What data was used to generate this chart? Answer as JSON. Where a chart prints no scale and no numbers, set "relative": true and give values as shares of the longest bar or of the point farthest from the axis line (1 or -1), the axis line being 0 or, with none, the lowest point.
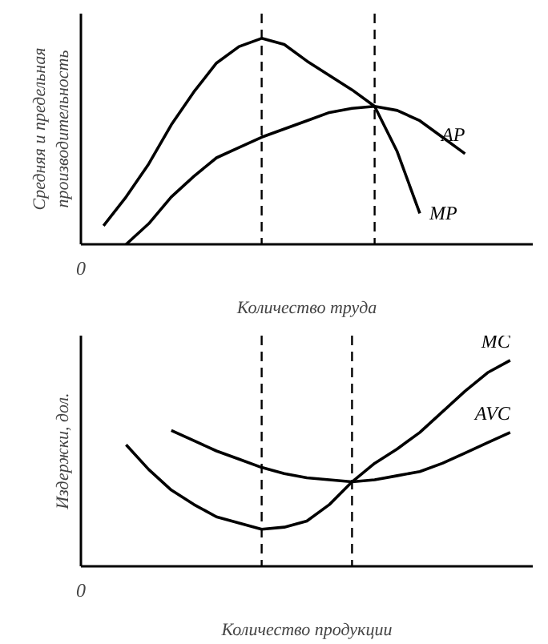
{
  "chart_data": [
    {
      "type": "line",
      "relative": true,
      "annotations": [
        "0"
      ],
      "xlabel": "Количество труда",
      "ylabel": "Средняя и предельная\nпроизводительность",
      "categories": [
        null,
        null,
        null,
        null,
        null,
        null,
        null,
        null,
        null,
        null,
        null,
        null,
        null,
        null,
        null,
        null,
        null,
        null,
        null,
        null,
        null
      ],
      "series": [
        {
          "name": "MP",
          "color": "#000000",
          "values": [
            null,
            0.09,
            0.23,
            0.39,
            0.58,
            0.74,
            0.88,
            0.96,
            1.0,
            0.97,
            0.89,
            0.82,
            0.75,
            0.67,
            0.45,
            0.15,
            null,
            null,
            null,
            null,
            null
          ]
        },
        {
          "name": "AP",
          "color": "#000000",
          "values": [
            null,
            null,
            0.0,
            0.1,
            0.23,
            0.33,
            0.42,
            0.47,
            0.52,
            0.56,
            0.6,
            0.64,
            0.66,
            0.67,
            0.65,
            0.6,
            0.52,
            0.44,
            null,
            null,
            null
          ]
        }
      ]
    },
    {
      "type": "line",
      "relative": true,
      "annotations": [
        "0"
      ],
      "xlabel": "Количество продукции",
      "ylabel": "Издержки, дол.",
      "categories": [
        null,
        null,
        null,
        null,
        null,
        null,
        null,
        null,
        null,
        null,
        null,
        null,
        null,
        null,
        null,
        null,
        null,
        null,
        null,
        null,
        null
      ],
      "series": [
        {
          "name": "MC",
          "color": "#000000",
          "values": [
            null,
            null,
            0.59,
            0.47,
            0.37,
            0.3,
            0.24,
            0.21,
            0.18,
            0.19,
            0.22,
            0.3,
            0.41,
            0.5,
            0.57,
            0.65,
            0.75,
            0.85,
            0.94,
            1.0,
            null
          ]
        },
        {
          "name": "AVC",
          "color": "#000000",
          "values": [
            null,
            null,
            null,
            null,
            0.66,
            0.61,
            0.56,
            0.52,
            0.48,
            0.45,
            0.43,
            0.42,
            0.41,
            0.42,
            0.44,
            0.46,
            0.5,
            0.55,
            0.6,
            0.65,
            null
          ]
        }
      ]
    }
  ]
}
